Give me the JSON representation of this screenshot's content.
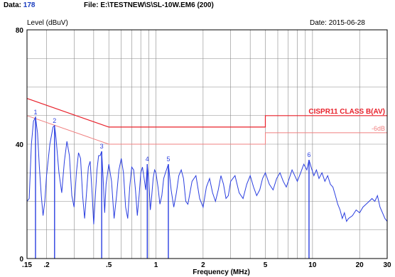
{
  "header": {
    "data_label": "Data:",
    "data_value": "178",
    "file_label": "File:",
    "file_value": "E:\\TESTNEW\\S\\SL-10W.EM6  (200)",
    "date_label": "Date:",
    "date_value": "2015-06-28"
  },
  "chart_data": {
    "type": "line",
    "title": "",
    "xlabel": "Frequency (MHz)",
    "ylabel": "Level (dBuV)",
    "x_scale": "log",
    "xlim": [
      0.15,
      30
    ],
    "ylim": [
      0,
      80
    ],
    "grid": true,
    "x_ticks": [
      {
        "value": 0.15,
        "label": ".15"
      },
      {
        "value": 0.2,
        "label": ".2"
      },
      {
        "value": 0.5,
        "label": ".5"
      },
      {
        "value": 1,
        "label": "1"
      },
      {
        "value": 2,
        "label": "2"
      },
      {
        "value": 5,
        "label": "5"
      },
      {
        "value": 10,
        "label": "10"
      },
      {
        "value": 20,
        "label": "20"
      },
      {
        "value": 30,
        "label": "30"
      }
    ],
    "y_ticks": [
      {
        "value": 0,
        "label": "0"
      },
      {
        "value": 40,
        "label": "40"
      },
      {
        "value": 80,
        "label": "80"
      }
    ],
    "limit_lines": [
      {
        "name": "CISPR11 CLASS B(AV)",
        "color": "#e8202a",
        "points": [
          [
            0.15,
            56
          ],
          [
            0.5,
            46
          ],
          [
            5,
            46
          ],
          [
            5,
            50
          ],
          [
            30,
            50
          ]
        ]
      },
      {
        "name": "-6dB",
        "color": "#f08080",
        "points": [
          [
            0.15,
            50
          ],
          [
            0.5,
            40
          ],
          [
            5,
            40
          ],
          [
            5,
            44
          ],
          [
            30,
            44
          ]
        ]
      }
    ],
    "markers": [
      {
        "label": "1",
        "x": 0.17,
        "y": 49.5
      },
      {
        "label": "2",
        "x": 0.225,
        "y": 46.5
      },
      {
        "label": "3",
        "x": 0.45,
        "y": 37.5
      },
      {
        "label": "4",
        "x": 0.88,
        "y": 33
      },
      {
        "label": "5",
        "x": 1.2,
        "y": 33
      },
      {
        "label": "6",
        "x": 9.5,
        "y": 34.5
      }
    ],
    "series": [
      {
        "color": "#2b3fe0",
        "points": [
          [
            0.15,
            20
          ],
          [
            0.155,
            21
          ],
          [
            0.16,
            40
          ],
          [
            0.165,
            48
          ],
          [
            0.17,
            49.5
          ],
          [
            0.175,
            44
          ],
          [
            0.18,
            32
          ],
          [
            0.185,
            22
          ],
          [
            0.19,
            15
          ],
          [
            0.195,
            20
          ],
          [
            0.2,
            29
          ],
          [
            0.21,
            40
          ],
          [
            0.22,
            46
          ],
          [
            0.225,
            46.5
          ],
          [
            0.23,
            42
          ],
          [
            0.24,
            30
          ],
          [
            0.25,
            23
          ],
          [
            0.26,
            34
          ],
          [
            0.27,
            41
          ],
          [
            0.28,
            36
          ],
          [
            0.29,
            22
          ],
          [
            0.3,
            18
          ],
          [
            0.31,
            30
          ],
          [
            0.32,
            37
          ],
          [
            0.33,
            35
          ],
          [
            0.34,
            22
          ],
          [
            0.35,
            14
          ],
          [
            0.36,
            23
          ],
          [
            0.37,
            32
          ],
          [
            0.38,
            34
          ],
          [
            0.39,
            24
          ],
          [
            0.4,
            12
          ],
          [
            0.41,
            22
          ],
          [
            0.42,
            31
          ],
          [
            0.43,
            36
          ],
          [
            0.44,
            36
          ],
          [
            0.45,
            37.5
          ],
          [
            0.46,
            28
          ],
          [
            0.47,
            16
          ],
          [
            0.48,
            26
          ],
          [
            0.5,
            33
          ],
          [
            0.52,
            27
          ],
          [
            0.54,
            14
          ],
          [
            0.56,
            22
          ],
          [
            0.58,
            31
          ],
          [
            0.6,
            35
          ],
          [
            0.62,
            30
          ],
          [
            0.64,
            18
          ],
          [
            0.66,
            14
          ],
          [
            0.68,
            25
          ],
          [
            0.7,
            32
          ],
          [
            0.72,
            31
          ],
          [
            0.74,
            24
          ],
          [
            0.76,
            15
          ],
          [
            0.78,
            22
          ],
          [
            0.8,
            30
          ],
          [
            0.82,
            32
          ],
          [
            0.84,
            28
          ],
          [
            0.86,
            24
          ],
          [
            0.88,
            33
          ],
          [
            0.9,
            27
          ],
          [
            0.92,
            17
          ],
          [
            0.94,
            22
          ],
          [
            0.96,
            28
          ],
          [
            0.98,
            31
          ],
          [
            1.0,
            30
          ],
          [
            1.03,
            25
          ],
          [
            1.06,
            19
          ],
          [
            1.09,
            22
          ],
          [
            1.12,
            28
          ],
          [
            1.15,
            30
          ],
          [
            1.2,
            33
          ],
          [
            1.25,
            24
          ],
          [
            1.3,
            18
          ],
          [
            1.35,
            23
          ],
          [
            1.4,
            29
          ],
          [
            1.45,
            31
          ],
          [
            1.5,
            28
          ],
          [
            1.55,
            20
          ],
          [
            1.6,
            19
          ],
          [
            1.7,
            27
          ],
          [
            1.8,
            29
          ],
          [
            1.9,
            21
          ],
          [
            2.0,
            18
          ],
          [
            2.1,
            25
          ],
          [
            2.2,
            28
          ],
          [
            2.3,
            23
          ],
          [
            2.4,
            20
          ],
          [
            2.5,
            24
          ],
          [
            2.6,
            29
          ],
          [
            2.7,
            26
          ],
          [
            2.8,
            21
          ],
          [
            2.9,
            22
          ],
          [
            3.0,
            27
          ],
          [
            3.2,
            29
          ],
          [
            3.4,
            23
          ],
          [
            3.6,
            21
          ],
          [
            3.8,
            26
          ],
          [
            4.0,
            29
          ],
          [
            4.2,
            25
          ],
          [
            4.4,
            22
          ],
          [
            4.6,
            24
          ],
          [
            4.8,
            28
          ],
          [
            5.0,
            30
          ],
          [
            5.3,
            26
          ],
          [
            5.6,
            24
          ],
          [
            5.9,
            28
          ],
          [
            6.2,
            30
          ],
          [
            6.5,
            27
          ],
          [
            6.8,
            25
          ],
          [
            7.1,
            28
          ],
          [
            7.4,
            31
          ],
          [
            7.7,
            29
          ],
          [
            8.0,
            27
          ],
          [
            8.4,
            30
          ],
          [
            8.8,
            33
          ],
          [
            9.2,
            31
          ],
          [
            9.5,
            34.5
          ],
          [
            9.8,
            32
          ],
          [
            10.2,
            29
          ],
          [
            10.6,
            31
          ],
          [
            11.0,
            28
          ],
          [
            11.5,
            30
          ],
          [
            12.0,
            27
          ],
          [
            12.5,
            29
          ],
          [
            13.0,
            26
          ],
          [
            13.5,
            25
          ],
          [
            14.0,
            22
          ],
          [
            14.5,
            19
          ],
          [
            15.0,
            17
          ],
          [
            15.5,
            14
          ],
          [
            16.0,
            16
          ],
          [
            16.5,
            13
          ],
          [
            17.0,
            14
          ],
          [
            18.0,
            15
          ],
          [
            19.0,
            17
          ],
          [
            20.0,
            16
          ],
          [
            21.0,
            18
          ],
          [
            22.0,
            19
          ],
          [
            23.0,
            20
          ],
          [
            24.0,
            21
          ],
          [
            25.0,
            20
          ],
          [
            26.0,
            22
          ],
          [
            27.0,
            18
          ],
          [
            28.0,
            16
          ],
          [
            29.0,
            14
          ],
          [
            30.0,
            13
          ]
        ]
      }
    ]
  }
}
